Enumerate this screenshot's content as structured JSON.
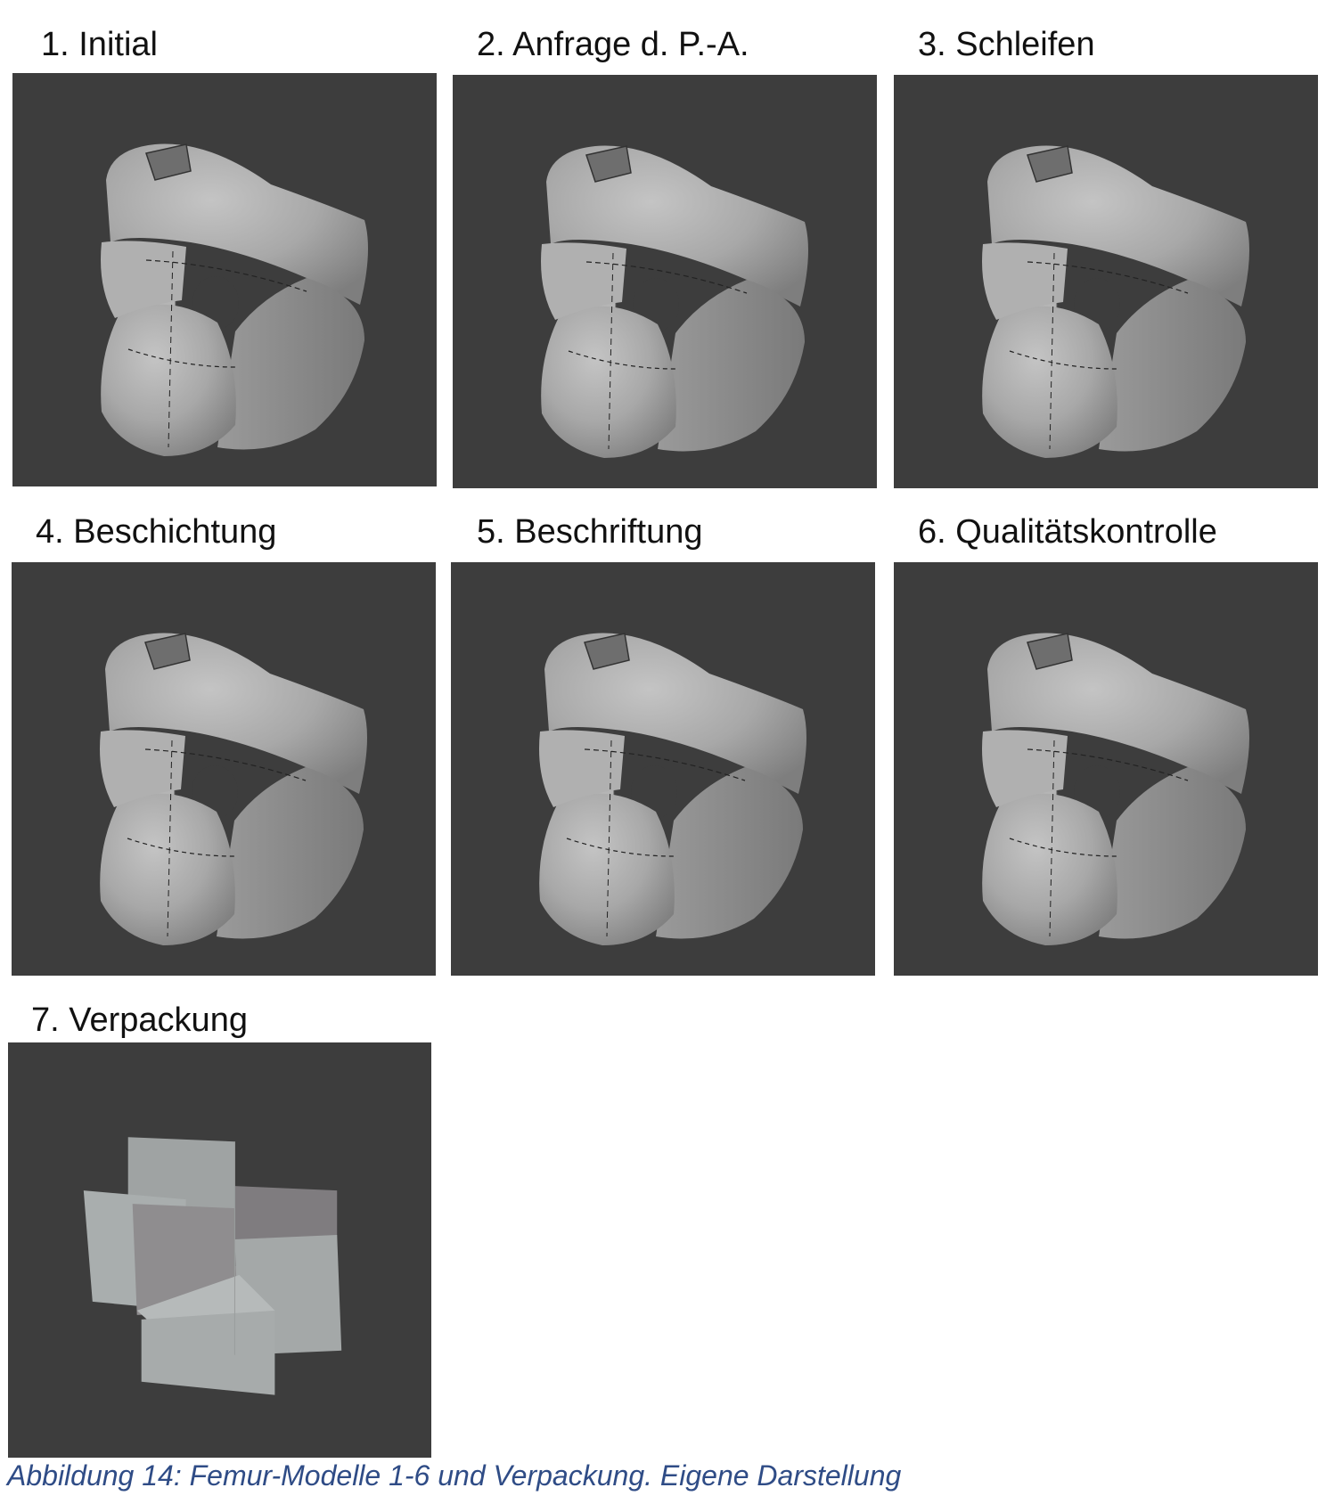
{
  "figure": {
    "panels": [
      {
        "title": "1. Initial",
        "model": "femur-model-initial"
      },
      {
        "title": "2. Anfrage d. P.-A.",
        "model": "femur-model-anfrage"
      },
      {
        "title": "3. Schleifen",
        "model": "femur-model-schleifen"
      },
      {
        "title": "4. Beschichtung",
        "model": "femur-model-beschichtung"
      },
      {
        "title": "5. Beschriftung",
        "model": "femur-model-beschriftung"
      },
      {
        "title": "6. Qualitätskontrolle",
        "model": "femur-model-qualitaetskontrolle"
      },
      {
        "title": "7. Verpackung",
        "model": "packaging-model"
      }
    ],
    "caption": "Abbildung 14: Femur-Modelle 1-6 und Verpackung. Eigene Darstellung",
    "colors": {
      "viewport_background": "#3d3d3d",
      "model_surface": "#a6a6a6",
      "caption_text": "#2f4c86",
      "title_text": "#111111"
    }
  }
}
